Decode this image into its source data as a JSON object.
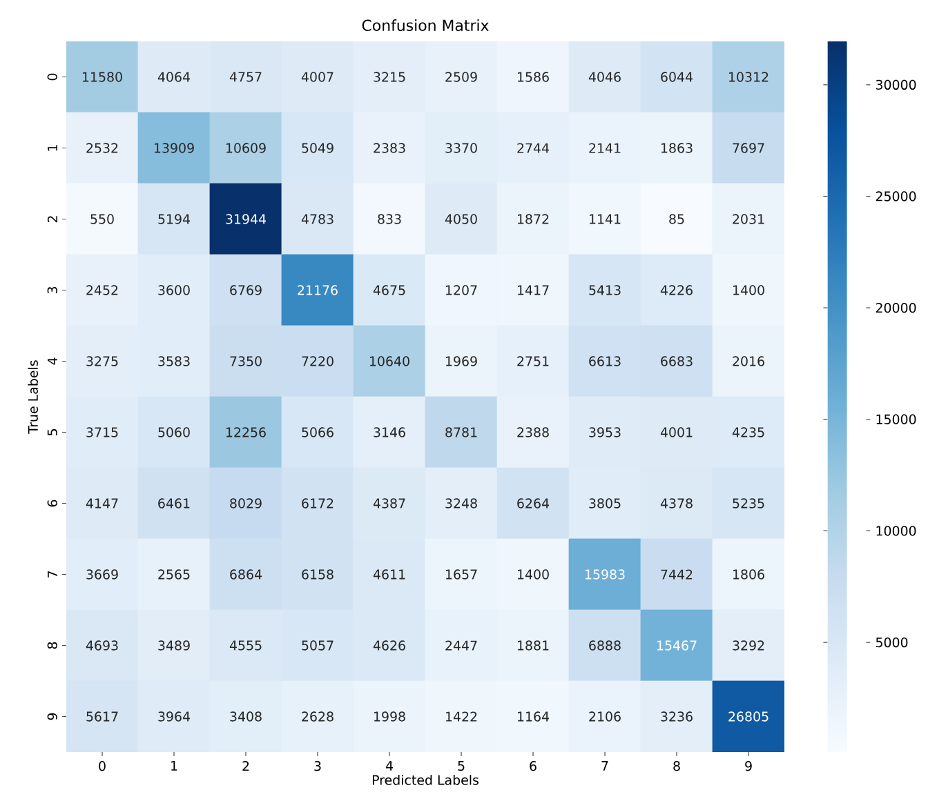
{
  "chart_data": {
    "type": "heatmap",
    "title": "Confusion Matrix",
    "xlabel": "Predicted Labels",
    "ylabel": "True Labels",
    "categories": [
      "0",
      "1",
      "2",
      "3",
      "4",
      "5",
      "6",
      "7",
      "8",
      "9"
    ],
    "y_categories": [
      "0",
      "1",
      "2",
      "3",
      "4",
      "5",
      "6",
      "7",
      "8",
      "9"
    ],
    "cells": [
      [
        11580,
        4064,
        4757,
        4007,
        3215,
        2509,
        1586,
        4046,
        6044,
        10312
      ],
      [
        2532,
        13909,
        10609,
        5049,
        2383,
        3370,
        2744,
        2141,
        1863,
        7697
      ],
      [
        550,
        5194,
        31944,
        4783,
        833,
        4050,
        1872,
        1141,
        85,
        2031
      ],
      [
        2452,
        3600,
        6769,
        21176,
        4675,
        1207,
        1417,
        5413,
        4226,
        1400
      ],
      [
        3275,
        3583,
        7350,
        7220,
        10640,
        1969,
        2751,
        6613,
        6683,
        2016
      ],
      [
        3715,
        5060,
        12256,
        5066,
        3146,
        8781,
        2388,
        3953,
        4001,
        4235
      ],
      [
        4147,
        6461,
        8029,
        6172,
        4387,
        3248,
        6264,
        3805,
        4378,
        5235
      ],
      [
        3669,
        2565,
        6864,
        6158,
        4611,
        1657,
        1400,
        15983,
        7442,
        1806
      ],
      [
        4693,
        3489,
        4555,
        5057,
        4626,
        2447,
        1881,
        6888,
        15467,
        3292
      ],
      [
        5617,
        3964,
        3408,
        2628,
        1998,
        1422,
        1164,
        2106,
        3236,
        26805
      ]
    ],
    "clim": [
      85,
      31944
    ],
    "cticks": [
      5000,
      10000,
      15000,
      20000,
      25000,
      30000
    ],
    "data_labels": true
  }
}
